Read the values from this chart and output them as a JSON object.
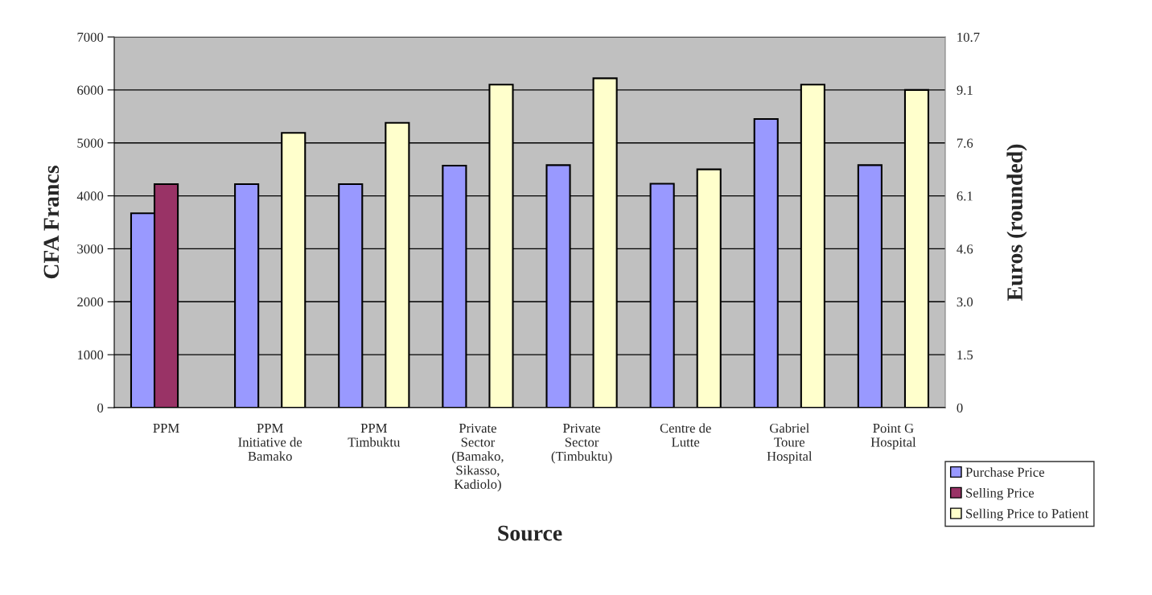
{
  "chart_data": {
    "type": "bar",
    "categories": [
      "PPM",
      "PPM\nInitiative de\nBamako",
      "PPM\nTimbuktu",
      "Private\nSector\n(Bamako,\nSikasso,\nKadiolo)",
      "Private\nSector\n(Timbuktu)",
      "Centre de\nLutte",
      "Gabriel\nToure\nHospital",
      "Point G\nHospital"
    ],
    "series": [
      {
        "name": "Purchase Price",
        "color": "#9999ff",
        "values": [
          3670,
          4220,
          4220,
          4570,
          4580,
          4230,
          5450,
          4580
        ]
      },
      {
        "name": "Selling Price",
        "color": "#993366",
        "values": [
          4220,
          null,
          null,
          null,
          null,
          null,
          null,
          null
        ]
      },
      {
        "name": "Selling Price to Patient",
        "color": "#ffffcc",
        "values": [
          null,
          5190,
          5380,
          6100,
          6220,
          4500,
          6100,
          6000
        ]
      }
    ],
    "xlabel": "Source",
    "ylabel": "CFA Francs",
    "y2label": "Euros (rounded)",
    "ylim": [
      0,
      7000
    ],
    "yticks": [
      0,
      1000,
      2000,
      3000,
      4000,
      5000,
      6000,
      7000
    ],
    "y2lim": [
      0,
      10.6715
    ],
    "y2ticks": [
      0,
      {
        "value": 1.5245,
        "label": "1.5"
      },
      {
        "value": 3.049,
        "label": "3.0"
      },
      {
        "value": 4.5735,
        "label": "4.6"
      },
      {
        "value": 6.098,
        "label": "6.1"
      },
      {
        "value": 7.6225,
        "label": "7.6"
      },
      {
        "value": 9.147,
        "label": "9.1"
      },
      {
        "value": 10.6715,
        "label": "10.7"
      }
    ],
    "grid": "y",
    "legend": "right"
  }
}
